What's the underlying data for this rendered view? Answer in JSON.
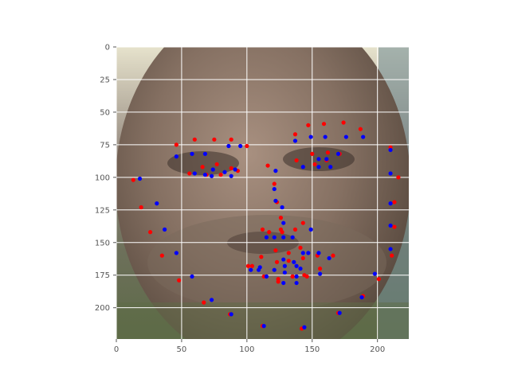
{
  "chart_data": {
    "type": "scatter",
    "title": "",
    "xlabel": "",
    "ylabel": "",
    "xlim": [
      0,
      224
    ],
    "ylim": [
      224,
      0
    ],
    "y_inverted": true,
    "grid": true,
    "background": "photo of a man's face (grayscale-toned, greenish background)",
    "x_ticks": [
      0,
      50,
      100,
      150,
      200
    ],
    "y_ticks": [
      0,
      25,
      50,
      75,
      100,
      125,
      150,
      175,
      200
    ],
    "series": [
      {
        "color": "#ff0000",
        "points": [
          [
            13,
            102
          ],
          [
            19,
            123
          ],
          [
            26,
            142
          ],
          [
            35,
            160
          ],
          [
            48,
            179
          ],
          [
            67,
            196
          ],
          [
            87,
            205
          ],
          [
            112,
            214
          ],
          [
            142,
            216
          ],
          [
            170,
            204
          ],
          [
            189,
            191
          ],
          [
            201,
            178
          ],
          [
            211,
            160
          ],
          [
            213,
            138
          ],
          [
            213,
            119
          ],
          [
            216,
            100
          ],
          [
            210,
            77
          ],
          [
            46,
            75
          ],
          [
            60,
            71
          ],
          [
            75,
            71
          ],
          [
            88,
            71
          ],
          [
            100,
            76
          ],
          [
            137,
            67
          ],
          [
            147,
            60
          ],
          [
            159,
            59
          ],
          [
            174,
            58
          ],
          [
            187,
            63
          ],
          [
            116,
            91
          ],
          [
            121,
            105
          ],
          [
            123,
            119
          ],
          [
            126,
            131
          ],
          [
            126,
            140
          ],
          [
            112,
            140
          ],
          [
            117,
            142
          ],
          [
            127,
            142
          ],
          [
            137,
            140
          ],
          [
            143,
            135
          ],
          [
            56,
            97
          ],
          [
            66,
            92
          ],
          [
            77,
            90
          ],
          [
            88,
            93
          ],
          [
            93,
            95
          ],
          [
            80,
            98
          ],
          [
            69,
            98
          ],
          [
            138,
            87
          ],
          [
            150,
            82
          ],
          [
            162,
            81
          ],
          [
            171,
            82
          ],
          [
            161,
            87
          ],
          [
            152,
            90
          ],
          [
            104,
            168
          ],
          [
            111,
            161
          ],
          [
            122,
            156
          ],
          [
            132,
            158
          ],
          [
            141,
            154
          ],
          [
            154,
            160
          ],
          [
            166,
            160
          ],
          [
            156,
            170
          ],
          [
            144,
            175
          ],
          [
            135,
            176
          ],
          [
            124,
            180
          ],
          [
            113,
            176
          ],
          [
            101,
            168
          ],
          [
            123,
            165
          ],
          [
            132,
            164
          ],
          [
            143,
            162
          ],
          [
            146,
            176
          ],
          [
            135,
            176
          ],
          [
            124,
            178
          ]
        ]
      },
      {
        "color": "#0000ff",
        "points": [
          [
            18,
            101
          ],
          [
            31,
            120
          ],
          [
            37,
            140
          ],
          [
            46,
            158
          ],
          [
            58,
            176
          ],
          [
            73,
            194
          ],
          [
            88,
            205
          ],
          [
            113,
            214
          ],
          [
            144,
            215
          ],
          [
            171,
            204
          ],
          [
            188,
            192
          ],
          [
            198,
            174
          ],
          [
            210,
            155
          ],
          [
            210,
            137
          ],
          [
            210,
            120
          ],
          [
            210,
            97
          ],
          [
            210,
            79
          ],
          [
            46,
            84
          ],
          [
            58,
            82
          ],
          [
            68,
            82
          ],
          [
            86,
            76
          ],
          [
            95,
            76
          ],
          [
            137,
            72
          ],
          [
            149,
            69
          ],
          [
            160,
            69
          ],
          [
            176,
            69
          ],
          [
            189,
            69
          ],
          [
            122,
            95
          ],
          [
            121,
            109
          ],
          [
            122,
            118
          ],
          [
            127,
            123
          ],
          [
            128,
            135
          ],
          [
            115,
            146
          ],
          [
            121,
            146
          ],
          [
            128,
            146
          ],
          [
            135,
            146
          ],
          [
            149,
            140
          ],
          [
            60,
            97
          ],
          [
            68,
            98
          ],
          [
            74,
            94
          ],
          [
            83,
            96
          ],
          [
            88,
            99
          ],
          [
            91,
            94
          ],
          [
            73,
            99
          ],
          [
            143,
            92
          ],
          [
            155,
            92
          ],
          [
            164,
            92
          ],
          [
            170,
            82
          ],
          [
            161,
            86
          ],
          [
            155,
            86
          ],
          [
            109,
            171
          ],
          [
            115,
            176
          ],
          [
            121,
            171
          ],
          [
            129,
            168
          ],
          [
            136,
            165
          ],
          [
            147,
            158
          ],
          [
            155,
            158
          ],
          [
            163,
            162
          ],
          [
            156,
            174
          ],
          [
            138,
            181
          ],
          [
            128,
            181
          ],
          [
            129,
            173
          ],
          [
            103,
            171
          ],
          [
            110,
            169
          ],
          [
            128,
            163
          ],
          [
            138,
            168
          ],
          [
            143,
            158
          ],
          [
            141,
            170
          ],
          [
            138,
            176
          ]
        ]
      }
    ]
  }
}
